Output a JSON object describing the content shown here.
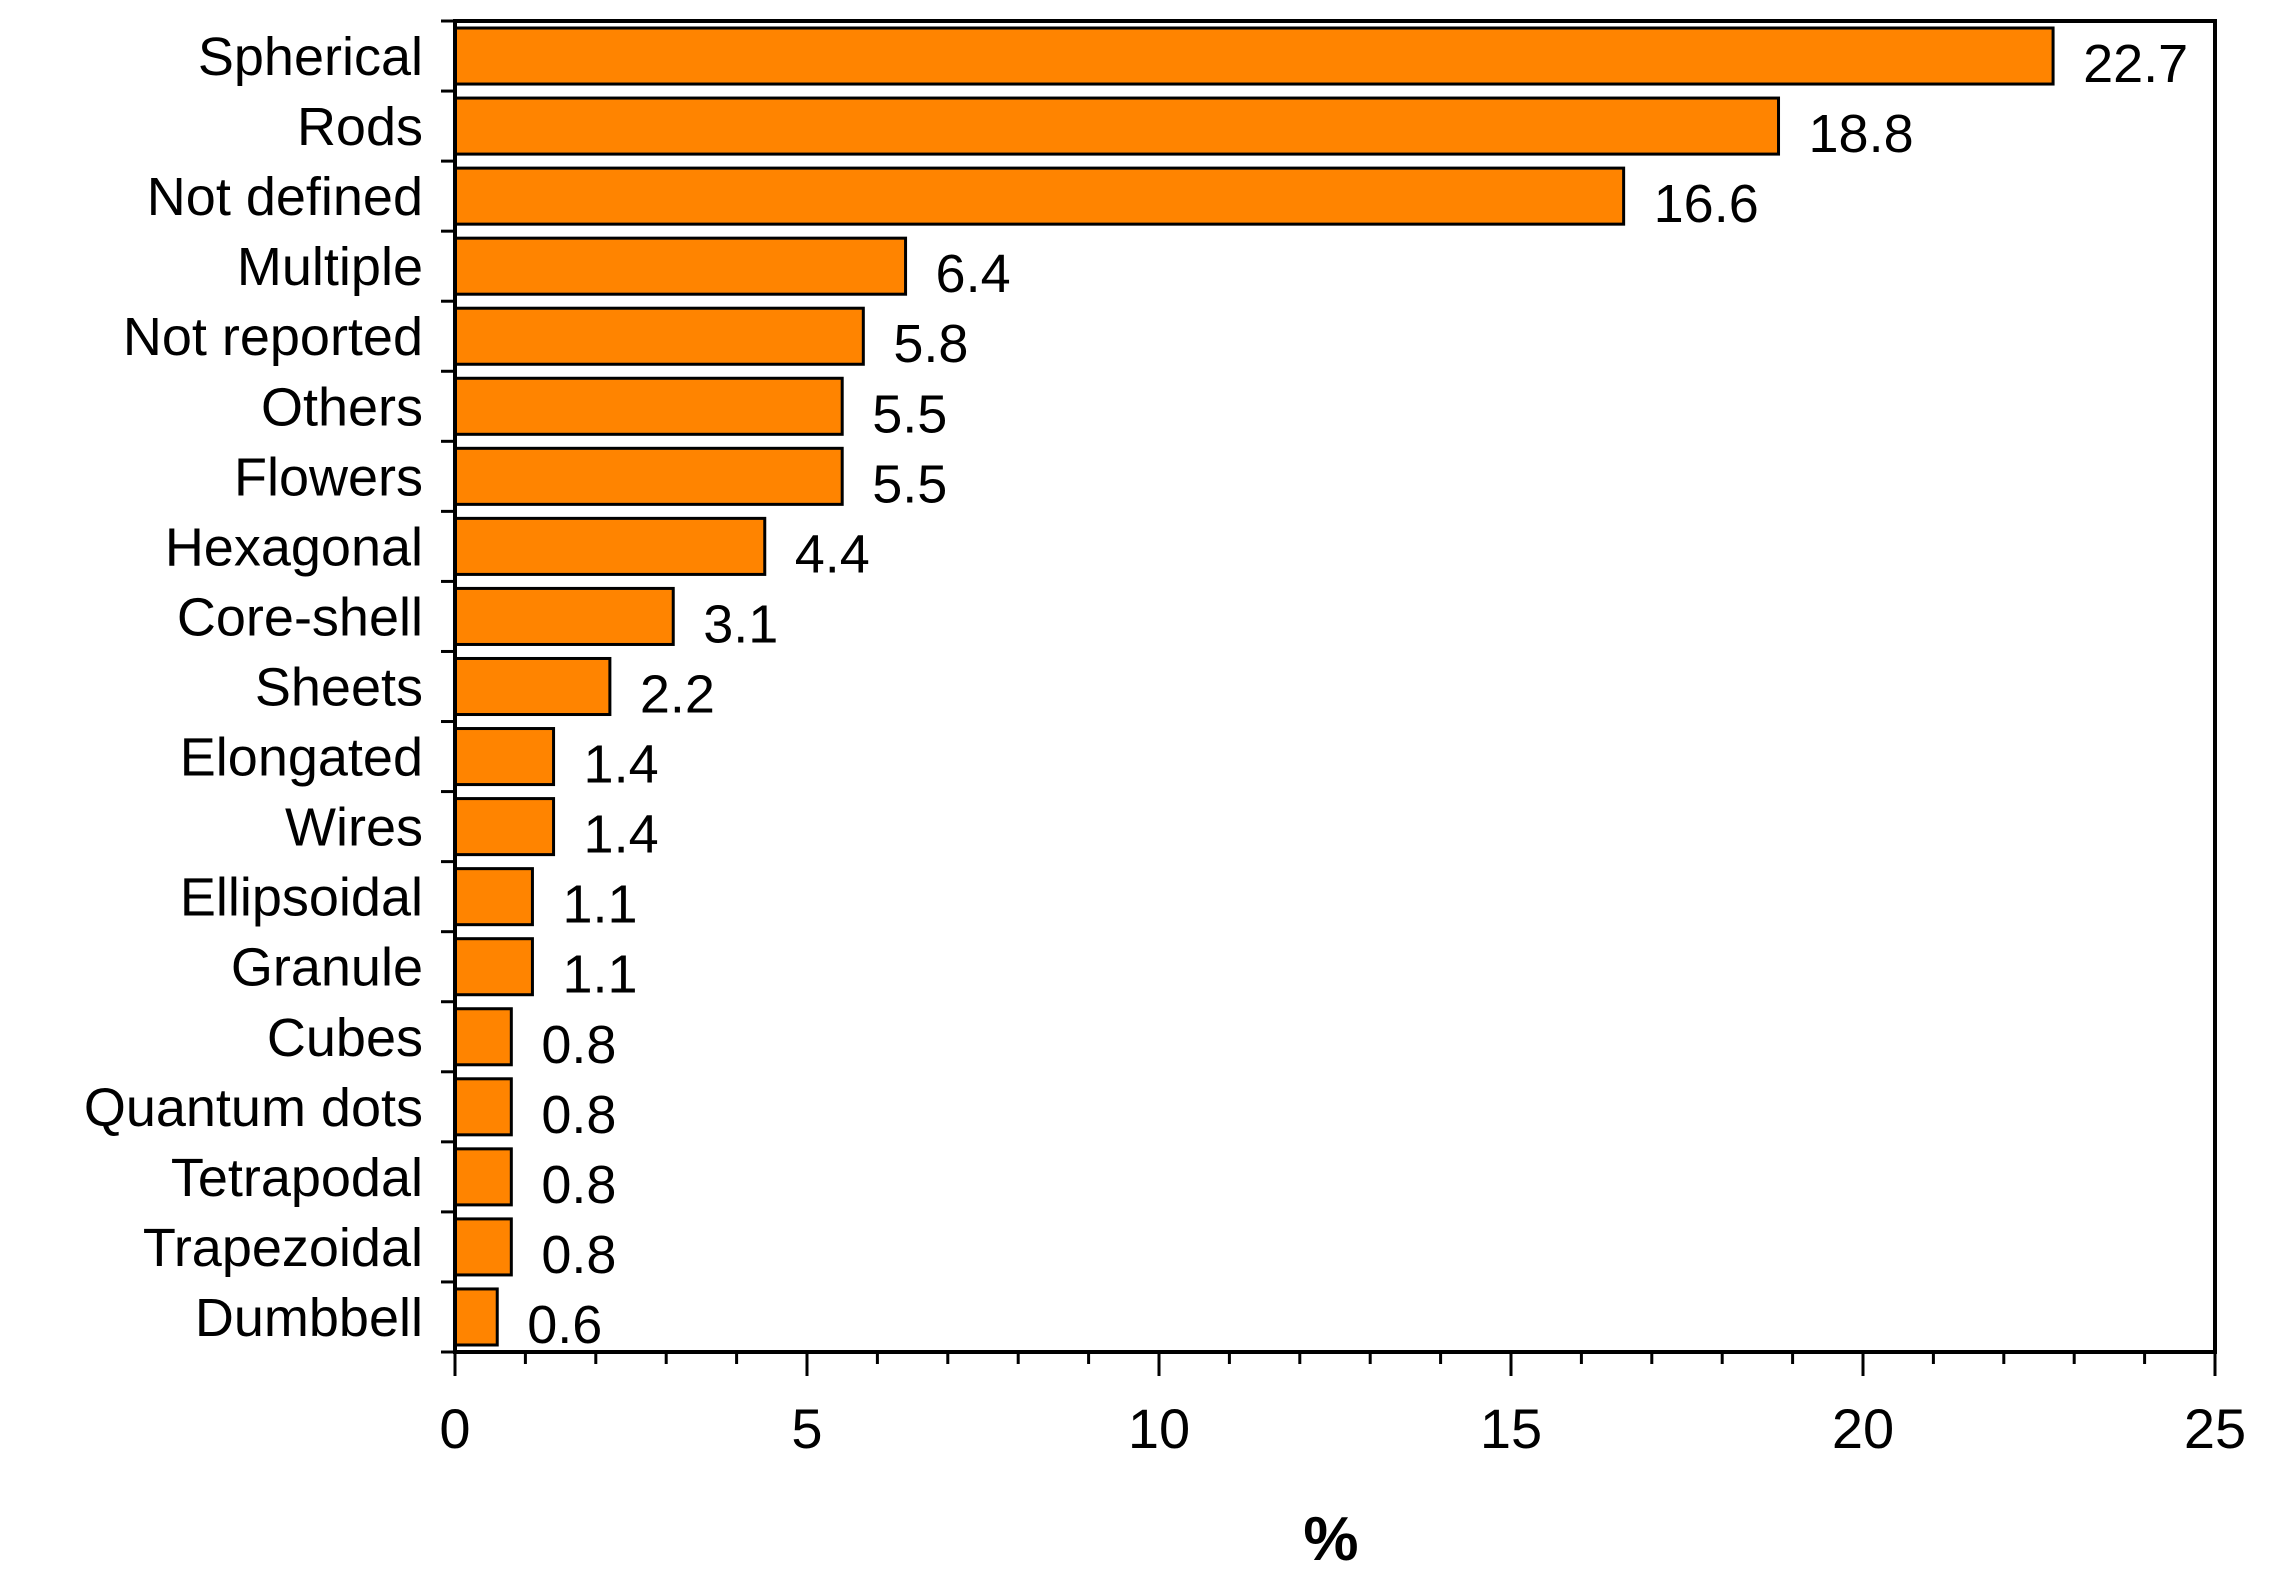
{
  "chart_data": {
    "type": "bar",
    "orientation": "horizontal",
    "title": "",
    "xlabel": "%",
    "ylabel": "",
    "xlim": [
      0,
      25
    ],
    "x_major_ticks": [
      0,
      5,
      10,
      15,
      20,
      25
    ],
    "x_tick_labels": [
      "0",
      "5",
      "10",
      "15",
      "20",
      "25"
    ],
    "x_minor_tick_step": 1,
    "grid": false,
    "legend": "none",
    "categories": [
      "Spherical",
      "Rods",
      "Not defined",
      "Multiple",
      "Not reported",
      "Others",
      "Flowers",
      "Hexagonal",
      "Core-shell",
      "Sheets",
      "Elongated",
      "Wires",
      "Ellipsoidal",
      "Granule",
      "Cubes",
      "Quantum dots",
      "Tetrapodal",
      "Trapezoidal",
      "Dumbbell"
    ],
    "values": [
      22.7,
      18.8,
      16.6,
      6.4,
      5.8,
      5.5,
      5.5,
      4.4,
      3.1,
      2.2,
      1.4,
      1.4,
      1.1,
      1.1,
      0.8,
      0.8,
      0.8,
      0.8,
      0.6
    ],
    "value_labels": [
      "22.7",
      "18.8",
      "16.6",
      "6.4",
      "5.8",
      "5.5",
      "5.5",
      "4.4",
      "3.1",
      "2.2",
      "1.4",
      "1.4",
      "1.1",
      "1.1",
      "0.8",
      "0.8",
      "0.8",
      "0.8",
      "0.6"
    ],
    "bar_color": "#ff8400",
    "bar_edge_color": "#000000"
  }
}
